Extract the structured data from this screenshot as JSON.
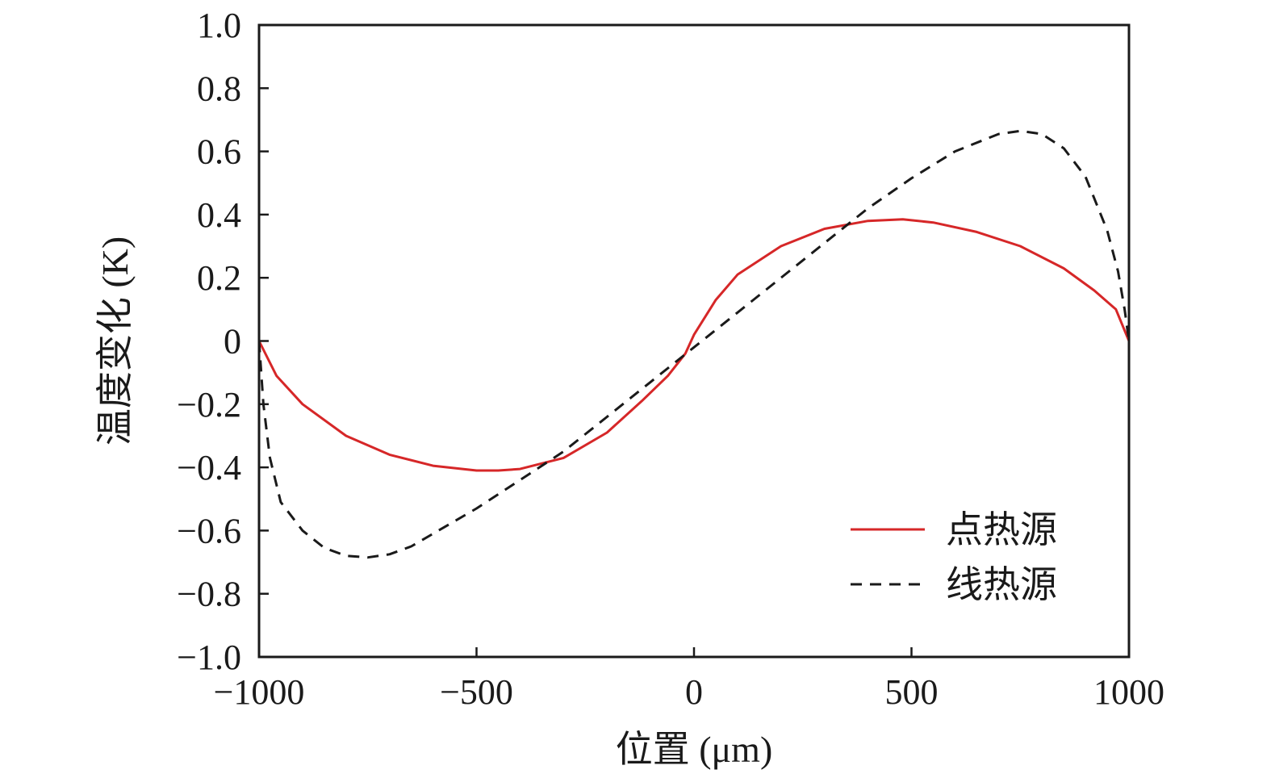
{
  "chart_data": {
    "type": "line",
    "title": "",
    "xlabel": "位置 (μm)",
    "ylabel": "温度变化 (K)",
    "xlim": [
      -1000,
      1000
    ],
    "ylim": [
      -1.0,
      1.0
    ],
    "x_ticks": [
      -1000,
      -500,
      0,
      500,
      1000
    ],
    "x_tick_labels": [
      "−1000",
      "−500",
      "0",
      "500",
      "1000"
    ],
    "y_ticks": [
      1.0,
      0.8,
      0.6,
      0.4,
      0.2,
      0,
      -0.2,
      -0.4,
      -0.6,
      -0.8,
      -1.0
    ],
    "y_tick_labels": [
      "1.0",
      "0.8",
      "0.6",
      "0.4",
      "0.2",
      "0",
      "−0.2",
      "−0.4",
      "−0.6",
      "−0.8",
      "−1.0"
    ],
    "grid": false,
    "legend_position": "bottom-right",
    "series": [
      {
        "name": "点热源",
        "color": "#d62728",
        "style": "solid",
        "x": [
          -1000,
          -960,
          -900,
          -800,
          -700,
          -600,
          -500,
          -450,
          -400,
          -300,
          -200,
          -120,
          -60,
          -20,
          0,
          50,
          100,
          200,
          300,
          400,
          480,
          550,
          650,
          750,
          850,
          920,
          970,
          1000
        ],
        "y": [
          0,
          -0.11,
          -0.2,
          -0.3,
          -0.36,
          -0.395,
          -0.41,
          -0.41,
          -0.405,
          -0.37,
          -0.29,
          -0.19,
          -0.11,
          -0.04,
          0.02,
          0.13,
          0.21,
          0.3,
          0.355,
          0.38,
          0.385,
          0.375,
          0.345,
          0.3,
          0.23,
          0.16,
          0.1,
          0
        ]
      },
      {
        "name": "线热源",
        "color": "#1a1a1a",
        "style": "dashed",
        "x": [
          -1000,
          -990,
          -975,
          -950,
          -900,
          -850,
          -800,
          -750,
          -700,
          -650,
          -600,
          -500,
          -400,
          -300,
          -200,
          -100,
          0,
          100,
          200,
          300,
          400,
          500,
          600,
          700,
          750,
          800,
          850,
          900,
          950,
          975,
          990,
          1000
        ],
        "y": [
          0,
          -0.2,
          -0.37,
          -0.51,
          -0.6,
          -0.655,
          -0.68,
          -0.685,
          -0.675,
          -0.65,
          -0.61,
          -0.53,
          -0.44,
          -0.35,
          -0.24,
          -0.13,
          -0.02,
          0.09,
          0.2,
          0.31,
          0.42,
          0.515,
          0.6,
          0.655,
          0.665,
          0.655,
          0.61,
          0.52,
          0.35,
          0.22,
          0.1,
          0
        ]
      }
    ]
  }
}
